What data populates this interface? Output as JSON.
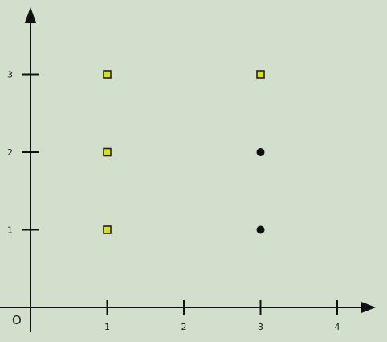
{
  "chart_data": {
    "type": "scatter",
    "title": "",
    "xlabel": "",
    "ylabel": "",
    "origin_label": "O",
    "xlim": [
      0,
      4.5
    ],
    "ylim": [
      0,
      3.8
    ],
    "grid": false,
    "x_ticks": [
      "1",
      "2",
      "3",
      "4"
    ],
    "y_ticks": [
      "1",
      "2",
      "3"
    ],
    "series": [
      {
        "marker": "square",
        "color": "#d9de15",
        "stroke": "#222222",
        "points": [
          {
            "x": 1,
            "y": 1
          },
          {
            "x": 1,
            "y": 2
          },
          {
            "x": 1,
            "y": 3
          },
          {
            "x": 3,
            "y": 3
          }
        ]
      },
      {
        "marker": "circle",
        "color": "#111111",
        "points": [
          {
            "x": 3,
            "y": 1
          },
          {
            "x": 3,
            "y": 2
          }
        ]
      }
    ]
  },
  "colors": {
    "background": "#d3dfcd",
    "axis": "#111111"
  }
}
